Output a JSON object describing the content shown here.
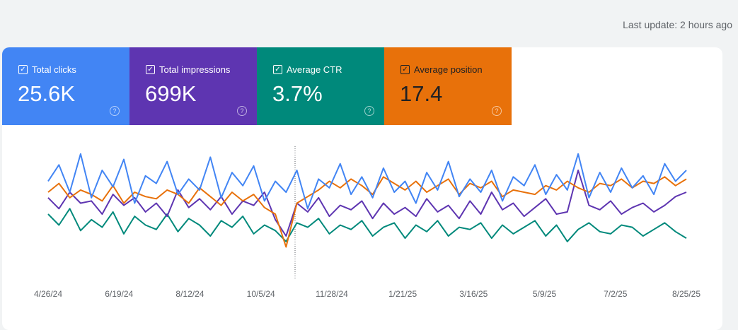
{
  "header": {
    "last_update": "Last update: 2 hours ago"
  },
  "metrics": [
    {
      "label": "Total clicks",
      "value": "25.6K",
      "color": "#4285f4",
      "checked": true
    },
    {
      "label": "Total impressions",
      "value": "699K",
      "color": "#5e35b1",
      "checked": true
    },
    {
      "label": "Average CTR",
      "value": "3.7%",
      "color": "#00897b",
      "checked": true
    },
    {
      "label": "Average position",
      "value": "17.4",
      "color": "#e8710a",
      "checked": true
    }
  ],
  "chart_data": {
    "type": "line",
    "xlabel": "",
    "ylabel": "",
    "x_ticks": [
      "4/26/24",
      "6/19/24",
      "8/12/24",
      "10/5/24",
      "11/28/24",
      "1/21/25",
      "3/16/25",
      "5/9/25",
      "7/2/25",
      "8/25/25"
    ],
    "annotation_date": "10/30/24",
    "y_scale": "relative (no axis shown)",
    "ylim": [
      0,
      100
    ],
    "grid": false,
    "series": [
      {
        "name": "Total clicks",
        "color": "#4285f4",
        "values": [
          70,
          85,
          60,
          95,
          55,
          80,
          65,
          90,
          50,
          75,
          68,
          88,
          58,
          72,
          62,
          92,
          55,
          78,
          66,
          84,
          52,
          70,
          60,
          80,
          45,
          72,
          64,
          86,
          58,
          74,
          55,
          82,
          60,
          70,
          50,
          78,
          62,
          88,
          56,
          72,
          60,
          80,
          52,
          74,
          66,
          85,
          58,
          76,
          62,
          95,
          55,
          78,
          60,
          82,
          64,
          75,
          58,
          86,
          70,
          80
        ]
      },
      {
        "name": "Total impressions",
        "color": "#5e35b1",
        "values": [
          55,
          45,
          60,
          50,
          52,
          40,
          58,
          48,
          55,
          42,
          50,
          38,
          62,
          46,
          54,
          44,
          56,
          40,
          52,
          48,
          60,
          35,
          20,
          50,
          42,
          55,
          38,
          48,
          44,
          52,
          36,
          50,
          40,
          46,
          38,
          54,
          42,
          48,
          36,
          52,
          40,
          60,
          44,
          50,
          38,
          46,
          54,
          40,
          42,
          80,
          48,
          44,
          52,
          40,
          46,
          50,
          42,
          48,
          56,
          60
        ]
      },
      {
        "name": "Average CTR",
        "color": "#00897b",
        "values": [
          40,
          30,
          45,
          25,
          35,
          28,
          42,
          22,
          38,
          30,
          26,
          40,
          24,
          36,
          30,
          20,
          34,
          28,
          38,
          22,
          30,
          25,
          15,
          32,
          28,
          36,
          22,
          30,
          26,
          34,
          20,
          28,
          32,
          18,
          30,
          24,
          34,
          20,
          28,
          26,
          32,
          18,
          30,
          22,
          28,
          34,
          20,
          30,
          15,
          26,
          32,
          24,
          22,
          30,
          28,
          20,
          26,
          32,
          24,
          18
        ]
      },
      {
        "name": "Average position",
        "color": "#e8710a",
        "values": [
          60,
          68,
          55,
          62,
          58,
          52,
          66,
          50,
          60,
          56,
          54,
          62,
          58,
          50,
          64,
          56,
          48,
          60,
          52,
          58,
          46,
          40,
          10,
          50,
          56,
          62,
          70,
          64,
          72,
          66,
          58,
          74,
          68,
          62,
          70,
          60,
          66,
          72,
          58,
          68,
          64,
          70,
          56,
          62,
          60,
          58,
          66,
          62,
          70,
          64,
          60,
          68,
          66,
          72,
          64,
          70,
          68,
          74,
          66,
          72
        ]
      }
    ]
  }
}
